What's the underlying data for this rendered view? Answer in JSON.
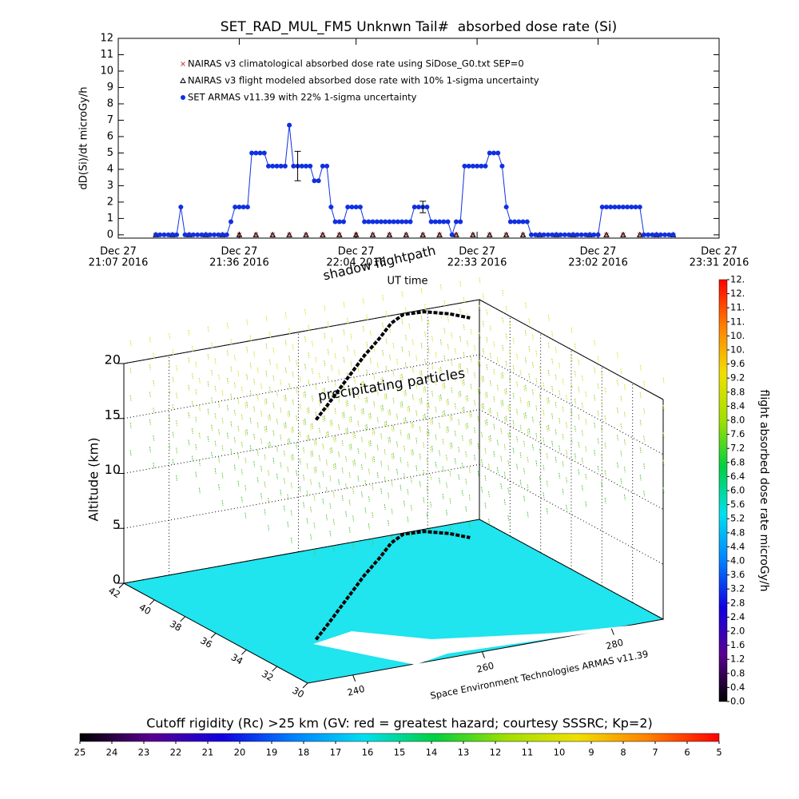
{
  "chart_data": [
    {
      "type": "line",
      "title": "SET_RAD_MUL_FM5 Unknwn Tail#  absorbed dose rate (Si)",
      "xlabel": "UT time",
      "ylabel": "dD(Si)/dt microGy/h",
      "xlim": [
        "2016-12-27 21:07",
        "2016-12-27 23:31"
      ],
      "xticks": [
        {
          "value": "2016-12-27 21:07",
          "label": [
            "Dec 27",
            "21:07 2016"
          ]
        },
        {
          "value": "2016-12-27 21:36",
          "label": [
            "Dec 27",
            "21:36 2016"
          ]
        },
        {
          "value": "2016-12-27 22:04",
          "label": [
            "Dec 27",
            "22:04 2016"
          ]
        },
        {
          "value": "2016-12-27 22:33",
          "label": [
            "Dec 27",
            "22:33 2016"
          ]
        },
        {
          "value": "2016-12-27 23:02",
          "label": [
            "Dec 27",
            "23:02 2016"
          ]
        },
        {
          "value": "2016-12-27 23:31",
          "label": [
            "Dec 27",
            "23:31 2016"
          ]
        }
      ],
      "ylim": [
        -0.2,
        12
      ],
      "yticks": [
        0,
        1,
        2,
        3,
        4,
        5,
        6,
        7,
        8,
        9,
        10,
        11,
        12
      ],
      "legend": "top-left",
      "series": [
        {
          "name": "NAIRAS v3 climatological absorbed dose rate using SiDose_G0.txt SEP=0",
          "color": "#d04040",
          "marker": "x",
          "line": false,
          "x": [
            "2016-12-27 21:16",
            "2016-12-27 21:20",
            "2016-12-27 21:24",
            "2016-12-27 21:28",
            "2016-12-27 21:32",
            "2016-12-27 21:36",
            "2016-12-27 21:40",
            "2016-12-27 21:44",
            "2016-12-27 21:48",
            "2016-12-27 21:52",
            "2016-12-27 21:56",
            "2016-12-27 22:00",
            "2016-12-27 22:04",
            "2016-12-27 22:08",
            "2016-12-27 22:12",
            "2016-12-27 22:16",
            "2016-12-27 22:20",
            "2016-12-27 22:24",
            "2016-12-27 22:28",
            "2016-12-27 22:32",
            "2016-12-27 22:36",
            "2016-12-27 22:40",
            "2016-12-27 22:44",
            "2016-12-27 22:48",
            "2016-12-27 22:52",
            "2016-12-27 22:56",
            "2016-12-27 23:00",
            "2016-12-27 23:04",
            "2016-12-27 23:08",
            "2016-12-27 23:12",
            "2016-12-27 23:16",
            "2016-12-27 23:20"
          ],
          "values": [
            0,
            0,
            0,
            0,
            0,
            0,
            0,
            0,
            0,
            0,
            0,
            0,
            0,
            0,
            0,
            0,
            0,
            0,
            0,
            0,
            0,
            0,
            0,
            0,
            0,
            0,
            0,
            0,
            0,
            0,
            0,
            0
          ]
        },
        {
          "name": "NAIRAS v3 flight modeled absorbed dose rate with 10% 1-sigma uncertainty",
          "color": "#000000",
          "marker": "triangle",
          "line": false,
          "x": [
            "2016-12-27 21:16",
            "2016-12-27 21:20",
            "2016-12-27 21:24",
            "2016-12-27 21:28",
            "2016-12-27 21:32",
            "2016-12-27 21:36",
            "2016-12-27 21:40",
            "2016-12-27 21:44",
            "2016-12-27 21:48",
            "2016-12-27 21:52",
            "2016-12-27 21:56",
            "2016-12-27 22:00",
            "2016-12-27 22:04",
            "2016-12-27 22:08",
            "2016-12-27 22:12",
            "2016-12-27 22:16",
            "2016-12-27 22:20",
            "2016-12-27 22:24",
            "2016-12-27 22:28",
            "2016-12-27 22:32",
            "2016-12-27 22:36",
            "2016-12-27 22:40",
            "2016-12-27 22:44",
            "2016-12-27 22:48",
            "2016-12-27 22:52",
            "2016-12-27 22:56",
            "2016-12-27 23:00",
            "2016-12-27 23:04",
            "2016-12-27 23:08",
            "2016-12-27 23:12",
            "2016-12-27 23:16",
            "2016-12-27 23:20"
          ],
          "values": [
            0,
            0,
            0,
            0,
            0,
            0,
            0,
            0,
            0,
            0,
            0,
            0,
            0,
            0,
            0,
            0,
            0,
            0,
            0,
            0,
            0,
            0,
            0,
            0,
            0,
            0,
            0,
            0,
            0,
            0,
            0,
            0
          ]
        },
        {
          "name": "SET ARMAS v11.39 with 22% 1-sigma uncertainty",
          "color": "#1030e0",
          "marker": "circle",
          "line": true,
          "x": [
            "2016-12-27 21:16",
            "2016-12-27 21:17",
            "2016-12-27 21:18",
            "2016-12-27 21:19",
            "2016-12-27 21:20",
            "2016-12-27 21:21",
            "2016-12-27 21:22",
            "2016-12-27 21:23",
            "2016-12-27 21:24",
            "2016-12-27 21:25",
            "2016-12-27 21:26",
            "2016-12-27 21:27",
            "2016-12-27 21:28",
            "2016-12-27 21:29",
            "2016-12-27 21:30",
            "2016-12-27 21:31",
            "2016-12-27 21:32",
            "2016-12-27 21:33",
            "2016-12-27 21:34",
            "2016-12-27 21:35",
            "2016-12-27 21:36",
            "2016-12-27 21:37",
            "2016-12-27 21:38",
            "2016-12-27 21:39",
            "2016-12-27 21:40",
            "2016-12-27 21:41",
            "2016-12-27 21:42",
            "2016-12-27 21:43",
            "2016-12-27 21:44",
            "2016-12-27 21:45",
            "2016-12-27 21:46",
            "2016-12-27 21:47",
            "2016-12-27 21:48",
            "2016-12-27 21:49",
            "2016-12-27 21:50",
            "2016-12-27 21:51",
            "2016-12-27 21:52",
            "2016-12-27 21:53",
            "2016-12-27 21:54",
            "2016-12-27 21:55",
            "2016-12-27 21:56",
            "2016-12-27 21:57",
            "2016-12-27 21:58",
            "2016-12-27 21:59",
            "2016-12-27 22:00",
            "2016-12-27 22:01",
            "2016-12-27 22:02",
            "2016-12-27 22:03",
            "2016-12-27 22:04",
            "2016-12-27 22:05",
            "2016-12-27 22:06",
            "2016-12-27 22:07",
            "2016-12-27 22:08",
            "2016-12-27 22:09",
            "2016-12-27 22:10",
            "2016-12-27 22:11",
            "2016-12-27 22:12",
            "2016-12-27 22:13",
            "2016-12-27 22:14",
            "2016-12-27 22:15",
            "2016-12-27 22:16",
            "2016-12-27 22:17",
            "2016-12-27 22:18",
            "2016-12-27 22:19",
            "2016-12-27 22:20",
            "2016-12-27 22:21",
            "2016-12-27 22:22",
            "2016-12-27 22:23",
            "2016-12-27 22:24",
            "2016-12-27 22:25",
            "2016-12-27 22:26",
            "2016-12-27 22:27",
            "2016-12-27 22:28",
            "2016-12-27 22:29",
            "2016-12-27 22:30",
            "2016-12-27 22:31",
            "2016-12-27 22:32",
            "2016-12-27 22:33",
            "2016-12-27 22:34",
            "2016-12-27 22:35",
            "2016-12-27 22:36",
            "2016-12-27 22:37",
            "2016-12-27 22:38",
            "2016-12-27 22:39",
            "2016-12-27 22:40",
            "2016-12-27 22:41",
            "2016-12-27 22:42",
            "2016-12-27 22:43",
            "2016-12-27 22:44",
            "2016-12-27 22:45",
            "2016-12-27 22:46",
            "2016-12-27 22:47",
            "2016-12-27 22:48",
            "2016-12-27 22:49",
            "2016-12-27 22:50",
            "2016-12-27 22:51",
            "2016-12-27 22:52",
            "2016-12-27 22:53",
            "2016-12-27 22:54",
            "2016-12-27 22:55",
            "2016-12-27 22:56",
            "2016-12-27 22:57",
            "2016-12-27 22:58",
            "2016-12-27 22:59",
            "2016-12-27 23:00",
            "2016-12-27 23:01",
            "2016-12-27 23:02",
            "2016-12-27 23:03",
            "2016-12-27 23:04",
            "2016-12-27 23:05",
            "2016-12-27 23:06",
            "2016-12-27 23:07",
            "2016-12-27 23:08",
            "2016-12-27 23:09",
            "2016-12-27 23:10",
            "2016-12-27 23:11",
            "2016-12-27 23:12",
            "2016-12-27 23:13",
            "2016-12-27 23:14",
            "2016-12-27 23:15",
            "2016-12-27 23:16",
            "2016-12-27 23:17",
            "2016-12-27 23:18",
            "2016-12-27 23:19",
            "2016-12-27 23:20"
          ],
          "values": [
            0,
            0,
            0,
            0,
            0,
            0,
            1.7,
            0,
            0,
            0,
            0,
            0,
            0,
            0,
            0,
            0,
            0,
            0,
            0.8,
            1.7,
            1.7,
            1.7,
            1.7,
            5,
            5,
            5,
            5,
            4.2,
            4.2,
            4.2,
            4.2,
            4.2,
            6.7,
            4.2,
            4.2,
            4.2,
            4.2,
            4.2,
            3.3,
            3.3,
            4.2,
            4.2,
            1.7,
            0.8,
            0.8,
            0.8,
            1.7,
            1.7,
            1.7,
            1.7,
            0.8,
            0.8,
            0.8,
            0.8,
            0.8,
            0.8,
            0.8,
            0.8,
            0.8,
            0.8,
            0.8,
            0.8,
            1.7,
            1.7,
            1.7,
            1.7,
            0.8,
            0.8,
            0.8,
            0.8,
            0.8,
            0,
            0.8,
            0.8,
            4.2,
            4.2,
            4.2,
            4.2,
            4.2,
            4.2,
            5,
            5,
            5,
            4.2,
            1.7,
            0.8,
            0.8,
            0.8,
            0.8,
            0.8,
            0,
            0,
            0,
            0,
            0,
            0,
            0,
            0,
            0,
            0,
            0,
            0,
            0,
            0,
            0,
            0,
            0,
            1.7,
            1.7,
            1.7,
            1.7,
            1.7,
            1.7,
            1.7,
            1.7,
            1.7,
            1.7,
            0,
            0,
            0,
            0,
            0,
            0,
            0,
            0
          ]
        }
      ],
      "error_bars": [
        {
          "x": "2016-12-27 21:50",
          "value": 4.2,
          "error": 0.9
        },
        {
          "x": "2016-12-27 22:20",
          "value": 1.7,
          "error": 0.35
        }
      ]
    },
    {
      "type": "surface3d",
      "zlabel": "Altitude (km)",
      "xlim": [
        233,
        288
      ],
      "xticks": [
        240,
        260,
        280
      ],
      "ylim": [
        30,
        42
      ],
      "yticks": [
        30,
        32,
        34,
        36,
        38,
        40,
        42
      ],
      "zlim": [
        0,
        20
      ],
      "zticks": [
        0,
        5,
        10,
        15,
        20
      ],
      "annotations": [
        "shadow flightpath",
        "precipitating particles"
      ],
      "credit": "Space Environment Technologies ARMAS v11.39",
      "ground_color": "#20e4ee",
      "path_color": "#000000",
      "flight_path": {
        "lon": [
          243.3,
          248,
          253,
          258,
          262.6,
          268,
          272.7,
          276,
          279,
          281.5,
          283
        ],
        "lat": [
          33.8,
          35,
          36.3,
          37.6,
          38.8,
          40.1,
          41.3,
          41.9,
          41.8,
          41.2,
          40.5
        ]
      }
    },
    {
      "type": "colorbar",
      "orientation": "vertical",
      "label": "flight absorbed dose rate microGy/h",
      "lim": [
        0,
        12
      ],
      "ticks": [
        {
          "value": 0,
          "label": "0.0"
        },
        0.4,
        0.8,
        1.2,
        1.6,
        {
          "value": 2,
          "label": "2.0"
        },
        2.4,
        2.8,
        3.2,
        3.6,
        {
          "value": 4,
          "label": "4.0"
        },
        4.4,
        4.8,
        5.2,
        5.6,
        {
          "value": 6,
          "label": "6.0"
        },
        6.4,
        6.8,
        7.2,
        7.6,
        {
          "value": 8,
          "label": "8.0"
        },
        8.4,
        8.8,
        9.2,
        9.6,
        {
          "value": 10,
          "label": "10."
        },
        {
          "value": 10.4,
          "label": "10."
        },
        {
          "value": 10.8,
          "label": "11."
        },
        {
          "value": 11.2,
          "label": "11."
        },
        {
          "value": 11.6,
          "label": "12."
        },
        {
          "value": 12,
          "label": "12."
        }
      ],
      "colors": [
        "#000000",
        "#5a0090",
        "#1000e0",
        "#0080ff",
        "#00e0f0",
        "#00d040",
        "#a0e000",
        "#f0e000",
        "#ff8000",
        "#ff0000"
      ]
    },
    {
      "type": "colorbar",
      "orientation": "horizontal",
      "label": "Cutoff rigidity (Rc) >25 km (GV: red = greatest hazard; courtesy SSSRC; Kp=2)",
      "lim": [
        25,
        5
      ],
      "ticks": [
        25,
        24,
        23,
        22,
        21,
        20,
        19,
        18,
        17,
        16,
        15,
        14,
        13,
        12,
        11,
        10,
        9,
        8,
        7,
        6,
        5
      ],
      "colors": [
        "#000000",
        "#5a0090",
        "#1000e0",
        "#0080ff",
        "#00e0f0",
        "#00d040",
        "#a0e000",
        "#f0e000",
        "#ff8000",
        "#ff0000"
      ]
    }
  ]
}
